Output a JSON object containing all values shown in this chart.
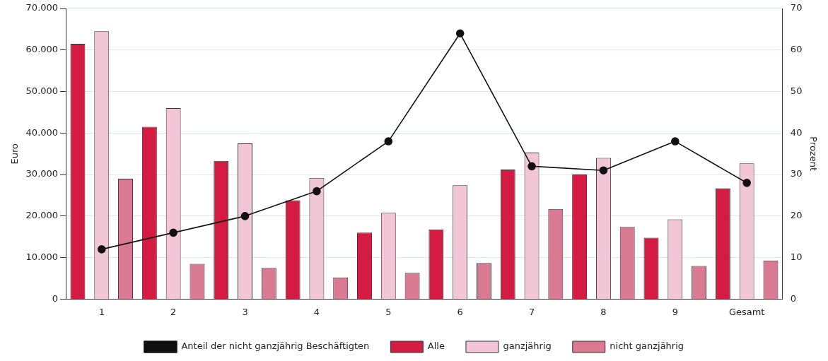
{
  "chart_data": {
    "type": "bar",
    "ylabel": "Euro",
    "y2label": "Prozent",
    "categories": [
      "1",
      "2",
      "3",
      "4",
      "5",
      "6",
      "7",
      "8",
      "9",
      "Gesamt"
    ],
    "series": [
      {
        "name": "Alle",
        "color": "#d41c42",
        "values": [
          61500,
          41500,
          33300,
          23800,
          16000,
          16800,
          31200,
          30000,
          14800,
          26700
        ]
      },
      {
        "name": "ganzjährig",
        "color": "#f2c6d6",
        "values": [
          64500,
          46000,
          37500,
          29200,
          20800,
          27400,
          35300,
          34000,
          19200,
          32700
        ]
      },
      {
        "name": "nicht ganzjährig",
        "color": "#d97a92",
        "values": [
          29000,
          8500,
          7500,
          5200,
          6300,
          8700,
          21700,
          17400,
          8000,
          9300
        ]
      },
      {
        "name": "Anteil der nicht ganzjährig Beschäftigten",
        "type": "line",
        "axis": "y2",
        "color": "#111111",
        "values": [
          12,
          16,
          20,
          26,
          38,
          64,
          32,
          31,
          38,
          28
        ]
      }
    ],
    "ylim": [
      0,
      70000
    ],
    "yticks": [
      {
        "value": 0,
        "label": "0"
      },
      {
        "value": 10000,
        "label": "10.000"
      },
      {
        "value": 20000,
        "label": "20.000"
      },
      {
        "value": 30000,
        "label": "30.000"
      },
      {
        "value": 40000,
        "label": "40.000"
      },
      {
        "value": 50000,
        "label": "50.000"
      },
      {
        "value": 60000,
        "label": "60.000"
      },
      {
        "value": 70000,
        "label": "70.000"
      }
    ],
    "y2lim": [
      0,
      70
    ],
    "y2ticks": [
      0,
      10,
      20,
      30,
      40,
      50,
      60,
      70
    ],
    "grid": "y",
    "legend": "bottom",
    "marker": "circle",
    "line_style": "solid"
  }
}
